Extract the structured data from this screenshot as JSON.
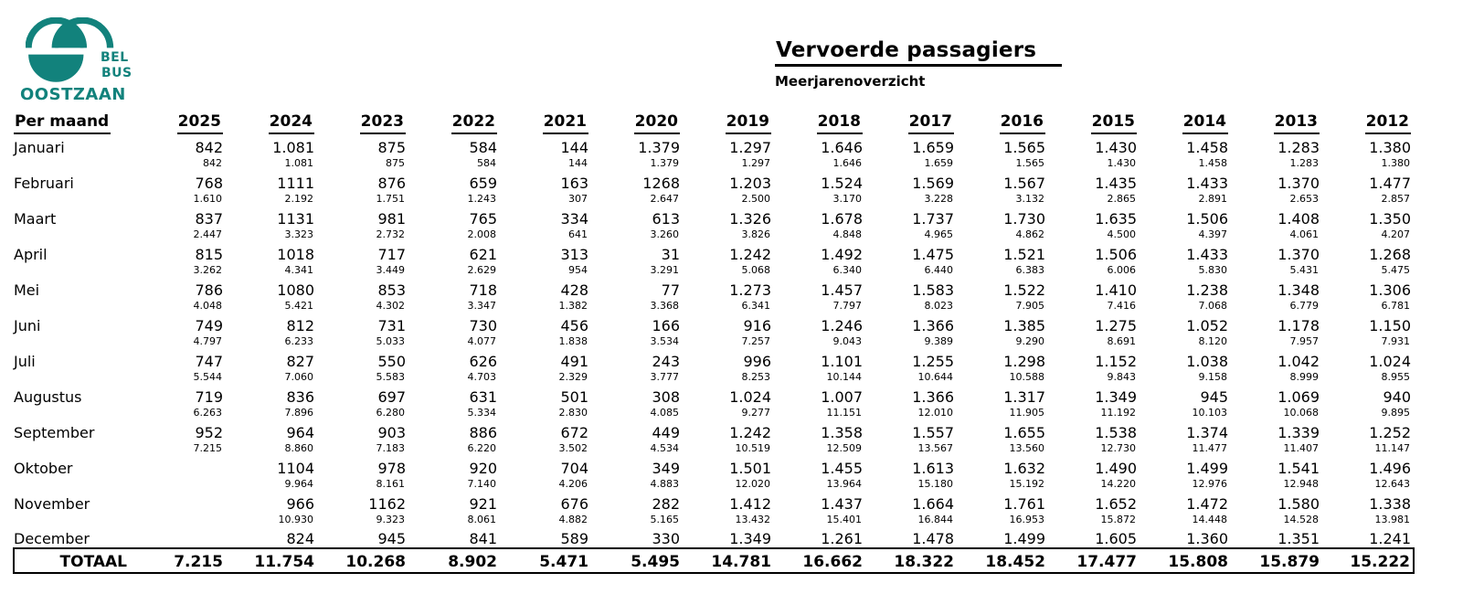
{
  "logo": {
    "line1": "BEL",
    "line2": "BUS",
    "line3": "OOSTZAAN",
    "color": "#12827C"
  },
  "header": {
    "title": "Vervoerde passagiers",
    "subtitle": "Meerjarenoverzicht"
  },
  "table": {
    "row_header": "Per maand",
    "years": [
      "2025",
      "2024",
      "2023",
      "2022",
      "2021",
      "2020",
      "2019",
      "2018",
      "2017",
      "2016",
      "2015",
      "2014",
      "2013",
      "2012"
    ],
    "months": [
      {
        "name": "Januari",
        "values": [
          "842",
          "1.081",
          "875",
          "584",
          "144",
          "1.379",
          "1.297",
          "1.646",
          "1.659",
          "1.565",
          "1.430",
          "1.458",
          "1.283",
          "1.380"
        ],
        "cumulative": [
          "842",
          "1.081",
          "875",
          "584",
          "144",
          "1.379",
          "1.297",
          "1.646",
          "1.659",
          "1.565",
          "1.430",
          "1.458",
          "1.283",
          "1.380"
        ]
      },
      {
        "name": "Februari",
        "values": [
          "768",
          "1111",
          "876",
          "659",
          "163",
          "1268",
          "1.203",
          "1.524",
          "1.569",
          "1.567",
          "1.435",
          "1.433",
          "1.370",
          "1.477"
        ],
        "cumulative": [
          "1.610",
          "2.192",
          "1.751",
          "1.243",
          "307",
          "2.647",
          "2.500",
          "3.170",
          "3.228",
          "3.132",
          "2.865",
          "2.891",
          "2.653",
          "2.857"
        ]
      },
      {
        "name": "Maart",
        "values": [
          "837",
          "1131",
          "981",
          "765",
          "334",
          "613",
          "1.326",
          "1.678",
          "1.737",
          "1.730",
          "1.635",
          "1.506",
          "1.408",
          "1.350"
        ],
        "cumulative": [
          "2.447",
          "3.323",
          "2.732",
          "2.008",
          "641",
          "3.260",
          "3.826",
          "4.848",
          "4.965",
          "4.862",
          "4.500",
          "4.397",
          "4.061",
          "4.207"
        ]
      },
      {
        "name": "April",
        "values": [
          "815",
          "1018",
          "717",
          "621",
          "313",
          "31",
          "1.242",
          "1.492",
          "1.475",
          "1.521",
          "1.506",
          "1.433",
          "1.370",
          "1.268"
        ],
        "cumulative": [
          "3.262",
          "4.341",
          "3.449",
          "2.629",
          "954",
          "3.291",
          "5.068",
          "6.340",
          "6.440",
          "6.383",
          "6.006",
          "5.830",
          "5.431",
          "5.475"
        ]
      },
      {
        "name": "Mei",
        "values": [
          "786",
          "1080",
          "853",
          "718",
          "428",
          "77",
          "1.273",
          "1.457",
          "1.583",
          "1.522",
          "1.410",
          "1.238",
          "1.348",
          "1.306"
        ],
        "cumulative": [
          "4.048",
          "5.421",
          "4.302",
          "3.347",
          "1.382",
          "3.368",
          "6.341",
          "7.797",
          "8.023",
          "7.905",
          "7.416",
          "7.068",
          "6.779",
          "6.781"
        ]
      },
      {
        "name": "Juni",
        "values": [
          "749",
          "812",
          "731",
          "730",
          "456",
          "166",
          "916",
          "1.246",
          "1.366",
          "1.385",
          "1.275",
          "1.052",
          "1.178",
          "1.150"
        ],
        "cumulative": [
          "4.797",
          "6.233",
          "5.033",
          "4.077",
          "1.838",
          "3.534",
          "7.257",
          "9.043",
          "9.389",
          "9.290",
          "8.691",
          "8.120",
          "7.957",
          "7.931"
        ]
      },
      {
        "name": "Juli",
        "values": [
          "747",
          "827",
          "550",
          "626",
          "491",
          "243",
          "996",
          "1.101",
          "1.255",
          "1.298",
          "1.152",
          "1.038",
          "1.042",
          "1.024"
        ],
        "cumulative": [
          "5.544",
          "7.060",
          "5.583",
          "4.703",
          "2.329",
          "3.777",
          "8.253",
          "10.144",
          "10.644",
          "10.588",
          "9.843",
          "9.158",
          "8.999",
          "8.955"
        ]
      },
      {
        "name": "Augustus",
        "values": [
          "719",
          "836",
          "697",
          "631",
          "501",
          "308",
          "1.024",
          "1.007",
          "1.366",
          "1.317",
          "1.349",
          "945",
          "1.069",
          "940"
        ],
        "cumulative": [
          "6.263",
          "7.896",
          "6.280",
          "5.334",
          "2.830",
          "4.085",
          "9.277",
          "11.151",
          "12.010",
          "11.905",
          "11.192",
          "10.103",
          "10.068",
          "9.895"
        ]
      },
      {
        "name": "September",
        "values": [
          "952",
          "964",
          "903",
          "886",
          "672",
          "449",
          "1.242",
          "1.358",
          "1.557",
          "1.655",
          "1.538",
          "1.374",
          "1.339",
          "1.252"
        ],
        "cumulative": [
          "7.215",
          "8.860",
          "7.183",
          "6.220",
          "3.502",
          "4.534",
          "10.519",
          "12.509",
          "13.567",
          "13.560",
          "12.730",
          "11.477",
          "11.407",
          "11.147"
        ]
      },
      {
        "name": "Oktober",
        "values": [
          "",
          "1104",
          "978",
          "920",
          "704",
          "349",
          "1.501",
          "1.455",
          "1.613",
          "1.632",
          "1.490",
          "1.499",
          "1.541",
          "1.496"
        ],
        "cumulative": [
          "",
          "9.964",
          "8.161",
          "7.140",
          "4.206",
          "4.883",
          "12.020",
          "13.964",
          "15.180",
          "15.192",
          "14.220",
          "12.976",
          "12.948",
          "12.643"
        ]
      },
      {
        "name": "November",
        "values": [
          "",
          "966",
          "1162",
          "921",
          "676",
          "282",
          "1.412",
          "1.437",
          "1.664",
          "1.761",
          "1.652",
          "1.472",
          "1.580",
          "1.338"
        ],
        "cumulative": [
          "",
          "10.930",
          "9.323",
          "8.061",
          "4.882",
          "5.165",
          "13.432",
          "15.401",
          "16.844",
          "16.953",
          "15.872",
          "14.448",
          "14.528",
          "13.981"
        ]
      },
      {
        "name": "December",
        "values": [
          "",
          "824",
          "945",
          "841",
          "589",
          "330",
          "1.349",
          "1.261",
          "1.478",
          "1.499",
          "1.605",
          "1.360",
          "1.351",
          "1.241"
        ],
        "cumulative": null
      }
    ],
    "total": {
      "label": "TOTAAL",
      "values": [
        "7.215",
        "11.754",
        "10.268",
        "8.902",
        "5.471",
        "5.495",
        "14.781",
        "16.662",
        "18.322",
        "18.452",
        "17.477",
        "15.808",
        "15.879",
        "15.222"
      ]
    }
  }
}
